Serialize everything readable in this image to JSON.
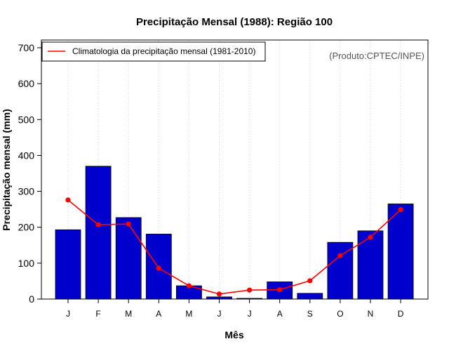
{
  "chart_data": {
    "type": "bar",
    "title": "Precipitação Mensal (1988): Região 100",
    "xlabel": "Mês",
    "ylabel": "Precipitação mensal (mm)",
    "ylim": [
      0,
      700
    ],
    "yticks": [
      0,
      100,
      200,
      300,
      400,
      500,
      600,
      700
    ],
    "categories": [
      "J",
      "F",
      "M",
      "A",
      "M",
      "J",
      "J",
      "A",
      "S",
      "O",
      "N",
      "D"
    ],
    "series": [
      {
        "name": "Precipitação mensal (1988)",
        "kind": "bar",
        "color": "#0000CD",
        "values": [
          193,
          370,
          227,
          181,
          37,
          6,
          2,
          48,
          16,
          158,
          190,
          265
        ]
      },
      {
        "name": "Climatologia da precipitação mensal (1981-2010)",
        "kind": "line",
        "color": "#FF0000",
        "values": [
          276,
          207,
          209,
          86,
          37,
          14,
          25,
          26,
          51,
          121,
          172,
          249
        ]
      }
    ],
    "legend": {
      "position": "top-left",
      "entries": [
        "Climatologia da precipitação mensal (1981-2010)"
      ]
    },
    "grid": "vertical dotted",
    "credit": "(Produto:CPTEC/INPE)"
  }
}
